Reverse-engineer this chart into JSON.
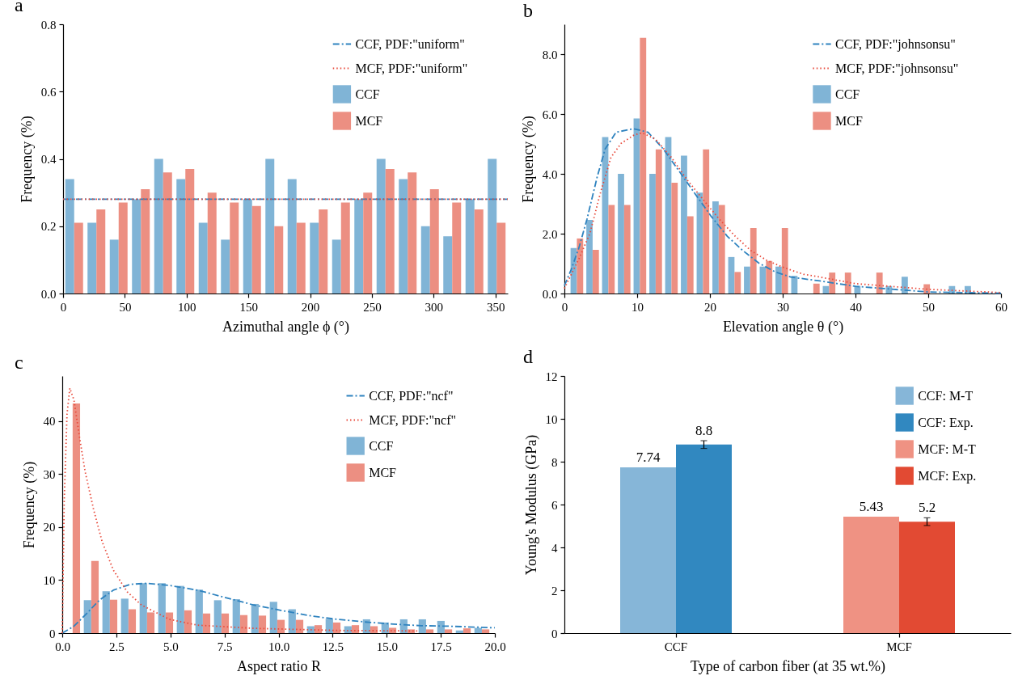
{
  "chart_data": [
    {
      "type": "histogram",
      "title": "a",
      "xlabel": "Azimuthal angle ϕ (°)",
      "ylabel": "Frequency (%)",
      "xlim": [
        0,
        360
      ],
      "xticks": [
        0,
        50,
        100,
        150,
        200,
        250,
        300,
        350
      ],
      "ylim": [
        0,
        0.8
      ],
      "yticks": [
        {
          "value": 0,
          "label": "0.0"
        },
        0.2,
        0.4,
        0.6,
        0.8
      ],
      "legend": "top right",
      "bins": [
        0,
        18,
        36,
        54,
        72,
        90,
        108,
        126,
        144,
        162,
        180,
        198,
        216,
        234,
        252,
        270,
        288,
        306,
        324,
        342,
        360
      ],
      "series": [
        {
          "name": "CCF, PDF:\"uniform\"",
          "type": "line",
          "color": "#2f83bf",
          "line_style": "dashdot",
          "x": [
            0,
            360
          ],
          "values": [
            0.28,
            0.28
          ]
        },
        {
          "name": "MCF, PDF:\"uniform\"",
          "type": "line",
          "color": "#e8493a",
          "line_style": "dotted",
          "x": [
            0,
            360
          ],
          "values": [
            0.28,
            0.28
          ]
        },
        {
          "name": "CCF",
          "color": "#80b4d6",
          "values": [
            0.34,
            0.21,
            0.16,
            0.28,
            0.4,
            0.34,
            0.21,
            0.16,
            0.28,
            0.4,
            0.34,
            0.21,
            0.16,
            0.28,
            0.4,
            0.34,
            0.2,
            0.17,
            0.28,
            0.4
          ]
        },
        {
          "name": "MCF",
          "color": "#ec8f82",
          "values": [
            0.21,
            0.25,
            0.27,
            0.31,
            0.36,
            0.37,
            0.3,
            0.27,
            0.26,
            0.2,
            0.21,
            0.25,
            0.27,
            0.3,
            0.37,
            0.36,
            0.31,
            0.27,
            0.25,
            0.21
          ]
        }
      ]
    },
    {
      "type": "histogram",
      "title": "b",
      "xlabel": "Elevation angle θ (°)",
      "ylabel": "Frequency (%)",
      "xlim": [
        0,
        60
      ],
      "xticks": [
        0,
        10,
        20,
        30,
        40,
        50,
        60
      ],
      "ylim": [
        0,
        9
      ],
      "yticks": [
        {
          "value": 0,
          "label": "0.0"
        },
        {
          "value": 2,
          "label": "2.0"
        },
        {
          "value": 4,
          "label": "4.0"
        },
        {
          "value": 6,
          "label": "6.0"
        },
        {
          "value": 8,
          "label": "8.0"
        }
      ],
      "legend": "top right",
      "bins": [
        0.63,
        2.8,
        4.96,
        7.13,
        9.29,
        11.46,
        13.63,
        15.79,
        17.96,
        20.12,
        22.29,
        24.46,
        26.62,
        28.79,
        30.95,
        33.12,
        35.29,
        37.45,
        39.62,
        41.78,
        43.95,
        46.12,
        48.28,
        50.45,
        52.61,
        54.78,
        56.95
      ],
      "series": [
        {
          "name": "CCF, PDF:\"johnsonsu\"",
          "type": "line",
          "color": "#2f83bf",
          "line_style": "dashdot",
          "x": [
            0,
            0.9,
            2,
            3.1,
            4.5,
            5.6,
            7.1,
            9.5,
            11.5,
            13.6,
            15.8,
            18,
            20.2,
            22.4,
            24.5,
            26.7,
            28.9,
            31.1,
            35.1,
            40,
            50,
            60
          ],
          "values": [
            0.26,
            0.78,
            1.53,
            2.48,
            3.89,
            4.83,
            5.39,
            5.51,
            5.39,
            4.83,
            4.08,
            3.32,
            2.57,
            1.91,
            1.44,
            1.02,
            0.73,
            0.55,
            0.42,
            0.24,
            0.05,
            0.01
          ]
        },
        {
          "name": "MCF, PDF:\"johnsonsu\"",
          "type": "line",
          "color": "#e8493a",
          "line_style": "dotted",
          "x": [
            0,
            2,
            3.5,
            4.9,
            6.4,
            7.8,
            9.6,
            10.7,
            12.5,
            14.7,
            16.9,
            19.1,
            21.3,
            23.5,
            25.6,
            27.8,
            30,
            32.9,
            35.1,
            40,
            50,
            60
          ],
          "values": [
            0.17,
            1.16,
            2.0,
            3.32,
            4.55,
            5.02,
            5.3,
            5.37,
            5.16,
            4.55,
            3.79,
            3.13,
            2.48,
            1.91,
            1.44,
            1.11,
            0.88,
            0.64,
            0.55,
            0.33,
            0.14,
            0.03
          ]
        },
        {
          "name": "CCF",
          "color": "#80b4d6",
          "values": [
            1.52,
            2.46,
            5.23,
            4.0,
            5.85,
            4.0,
            5.23,
            4.61,
            3.37,
            3.08,
            1.22,
            0.9,
            0.9,
            0.9,
            0.59,
            0,
            0.25,
            0,
            0.25,
            0,
            0.25,
            0.56,
            0,
            0,
            0.25,
            0.25
          ]
        },
        {
          "name": "MCF",
          "color": "#ec8f82",
          "values": [
            1.84,
            1.46,
            2.96,
            2.96,
            8.55,
            4.82,
            3.7,
            2.58,
            4.82,
            2.96,
            0.72,
            2.19,
            1.09,
            2.19,
            0,
            0.33,
            0.7,
            0.7,
            0,
            0.7,
            0,
            0,
            0.31,
            0,
            0,
            0
          ]
        }
      ]
    },
    {
      "type": "histogram",
      "title": "c",
      "xlabel": "Aspect ratio R",
      "ylabel": "Frequency (%)",
      "xlim": [
        0,
        20
      ],
      "xticks": [
        {
          "value": 0,
          "label": "0.0"
        },
        2.5,
        {
          "value": 5,
          "label": "5.0"
        },
        7.5,
        {
          "value": 10,
          "label": "10.0"
        },
        12.5,
        {
          "value": 15,
          "label": "15.0"
        },
        17.5,
        {
          "value": 20,
          "label": "20.0"
        }
      ],
      "ylim": [
        0,
        48.5
      ],
      "yticks": [
        0,
        10,
        20,
        30,
        40
      ],
      "legend": "top right",
      "bins": [
        0.05,
        0.91,
        1.77,
        2.63,
        3.49,
        4.35,
        5.21,
        6.07,
        6.93,
        7.79,
        8.65,
        9.51,
        10.37,
        11.23,
        12.09,
        12.95,
        13.81,
        14.67,
        15.53,
        16.39,
        17.25,
        18.11,
        18.97,
        19.83
      ],
      "series": [
        {
          "name": "CCF, PDF:\"ncf\"",
          "type": "line",
          "color": "#2f83bf",
          "line_style": "dashdot",
          "x": [
            0,
            0.54,
            1.06,
            1.71,
            2.36,
            3.14,
            3.92,
            4.95,
            6.25,
            7.55,
            8.85,
            10.1,
            11.4,
            12.7,
            14,
            15.3,
            16.6,
            17.9,
            20
          ],
          "values": [
            0,
            1.3,
            3.4,
            6.2,
            8.1,
            9.2,
            9.4,
            9.0,
            8.1,
            6.7,
            5.3,
            4.3,
            3.3,
            2.6,
            2.1,
            1.7,
            1.4,
            1.3,
            1.0
          ]
        },
        {
          "name": "MCF, PDF:\"ncf\"",
          "type": "line",
          "color": "#e8493a",
          "line_style": "dotted",
          "x": [
            0,
            0.09,
            0.22,
            0.35,
            0.54,
            0.8,
            1.06,
            1.45,
            1.84,
            2.36,
            3.0,
            3.66,
            4.95,
            6.25,
            8.85,
            12.7,
            16.5
          ],
          "values": [
            0,
            25,
            41.3,
            46.2,
            44,
            36.9,
            30.4,
            23.3,
            17.3,
            11.9,
            7.8,
            5.3,
            2.6,
            1.5,
            0.9,
            0.5,
            0.4
          ]
        },
        {
          "name": "CCF",
          "color": "#80b4d6",
          "values": [
            0,
            6.2,
            7.9,
            6.5,
            9.4,
            9.4,
            8.9,
            8.2,
            6.2,
            6.4,
            5.5,
            5.9,
            4.5,
            1.3,
            2.7,
            1.3,
            2.6,
            2.0,
            2.6,
            2.6,
            2.3,
            0.5,
            1.0
          ]
        },
        {
          "name": "MCF",
          "color": "#ec8f82",
          "values": [
            43.3,
            13.6,
            6.3,
            4.5,
            3.9,
            3.9,
            4.3,
            3.7,
            3.7,
            3.4,
            3.3,
            2.5,
            2.5,
            1.5,
            2.0,
            1.5,
            1.3,
            1.0,
            0.7,
            0.7,
            0.7,
            0.9,
            0.7
          ]
        }
      ]
    },
    {
      "type": "bar",
      "title": "d",
      "xlabel": "Type of carbon fiber (at 35 wt.%)",
      "ylabel": "Young's Modulus (GPa)",
      "categories": [
        "CCF",
        "MCF"
      ],
      "ylim": [
        0,
        12
      ],
      "yticks": [
        0,
        2,
        4,
        6,
        8,
        10,
        12
      ],
      "legend": "top right",
      "data_labels": true,
      "series": [
        {
          "name": "CCF: M-T",
          "color": "#86b6d8",
          "values": [
            7.74,
            null
          ]
        },
        {
          "name": "CCF: Exp.",
          "color": "#3188c0",
          "values": [
            8.8,
            null
          ],
          "errors": [
            0.18,
            null
          ]
        },
        {
          "name": "MCF: M-T",
          "color": "#ef9283",
          "values": [
            null,
            5.43
          ]
        },
        {
          "name": "MCF: Exp.",
          "color": "#e24a33",
          "values": [
            null,
            5.2
          ],
          "errors": [
            null,
            0.18
          ]
        }
      ]
    }
  ]
}
